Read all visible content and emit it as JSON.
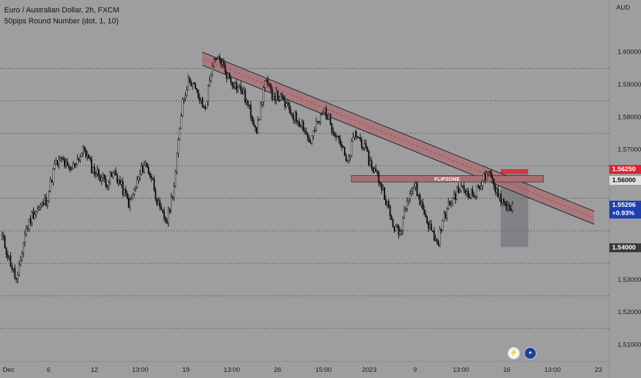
{
  "header": {
    "symbol_line": "Euro / Australian Dollar, 2h, FXCM",
    "indicator_line": "50pips Round Number (dot, 1, 10)"
  },
  "axis": {
    "currency": "AUD",
    "y_ticks": [
      "1.60000",
      "1.59000",
      "1.58000",
      "1.57000",
      "1.56000",
      "1.55000",
      "1.54000",
      "1.53000",
      "1.52000",
      "1.51000"
    ],
    "x_ticks": [
      "Dec",
      "6",
      "12",
      "13:00",
      "19",
      "13:00",
      "26",
      "15:00",
      "2023",
      "9",
      "13:00",
      "16",
      "13:00",
      "23"
    ]
  },
  "badges": {
    "alert_price": "1.56250",
    "current_price": "1.55206",
    "current_change": "+0.93%",
    "target_price": "1.54000"
  },
  "annotations": {
    "zone_label": "FLIPZONE"
  },
  "colors": {
    "background": "#9e9ea0",
    "candle": "#111111",
    "channel_fill": "#a86f74",
    "channel_dash": "#e0303a",
    "alert_badge": "#e2232f",
    "price_badge": "#1e40af",
    "target_badge": "#3a3a3a",
    "round_number_dots": "#2a2a2a"
  },
  "icons": {
    "events": [
      "lightning-icon",
      "australia-flag-icon"
    ]
  },
  "chart_data": {
    "type": "candlestick",
    "ylim": [
      1.505,
      1.6065
    ],
    "round_number_levels": [
      1.515,
      1.525,
      1.535,
      1.545,
      1.555,
      1.565,
      1.575,
      1.585,
      1.595
    ],
    "price_path": [
      1.543,
      1.536,
      1.529,
      1.544,
      1.55,
      1.552,
      1.555,
      1.565,
      1.567,
      1.563,
      1.567,
      1.57,
      1.564,
      1.562,
      1.56,
      1.563,
      1.558,
      1.553,
      1.56,
      1.566,
      1.561,
      1.551,
      1.548,
      1.56,
      1.585,
      1.592,
      1.587,
      1.582,
      1.596,
      1.598,
      1.593,
      1.59,
      1.588,
      1.582,
      1.576,
      1.591,
      1.587,
      1.586,
      1.583,
      1.58,
      1.578,
      1.572,
      1.578,
      1.582,
      1.577,
      1.573,
      1.565,
      1.575,
      1.572,
      1.566,
      1.562,
      1.556,
      1.547,
      1.544,
      1.556,
      1.559,
      1.552,
      1.546,
      1.541,
      1.55,
      1.555,
      1.558,
      1.557,
      1.556,
      1.561,
      1.562,
      1.557,
      1.553,
      1.552
    ],
    "resistance_channel": {
      "start": 1.6,
      "end": 1.551,
      "width": 0.004
    },
    "flip_zone": [
      1.56,
      1.562
    ],
    "short_position": {
      "entry": 1.5625,
      "stop": 1.564,
      "target": 1.54
    }
  }
}
